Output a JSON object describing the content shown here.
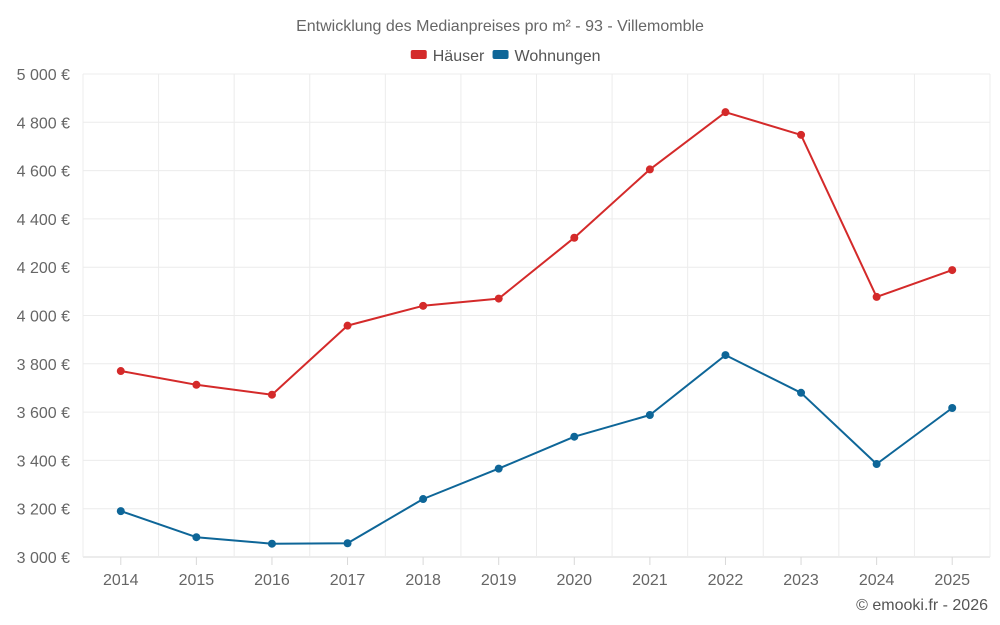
{
  "chart_data": {
    "type": "line",
    "title": "Entwicklung des Medianpreises pro m² - 93 - Villemomble",
    "categories": [
      "2014",
      "2015",
      "2016",
      "2017",
      "2018",
      "2019",
      "2020",
      "2021",
      "2022",
      "2023",
      "2024",
      "2025"
    ],
    "ylim": [
      3000,
      5000
    ],
    "yticks": [
      3000,
      3200,
      3400,
      3600,
      3800,
      4000,
      4200,
      4400,
      4600,
      4800,
      5000
    ],
    "ytick_labels": [
      "3 000 €",
      "3 200 €",
      "3 400 €",
      "3 600 €",
      "3 800 €",
      "4 000 €",
      "4 200 €",
      "4 400 €",
      "4 600 €",
      "4 800 €",
      "5 000 €"
    ],
    "grid": true,
    "legend_position": "top-center",
    "series": [
      {
        "name": "Häuser",
        "color": "#d42a2a",
        "values": [
          3770,
          3713,
          3672,
          3958,
          4040,
          4070,
          4322,
          4605,
          4842,
          4748,
          4077,
          4188
        ]
      },
      {
        "name": "Wohnungen",
        "color": "#0e6698",
        "values": [
          3190,
          3082,
          3055,
          3057,
          3240,
          3366,
          3498,
          3588,
          3836,
          3680,
          3385,
          3617
        ]
      }
    ]
  },
  "credit": "© emooki.fr - 2026"
}
